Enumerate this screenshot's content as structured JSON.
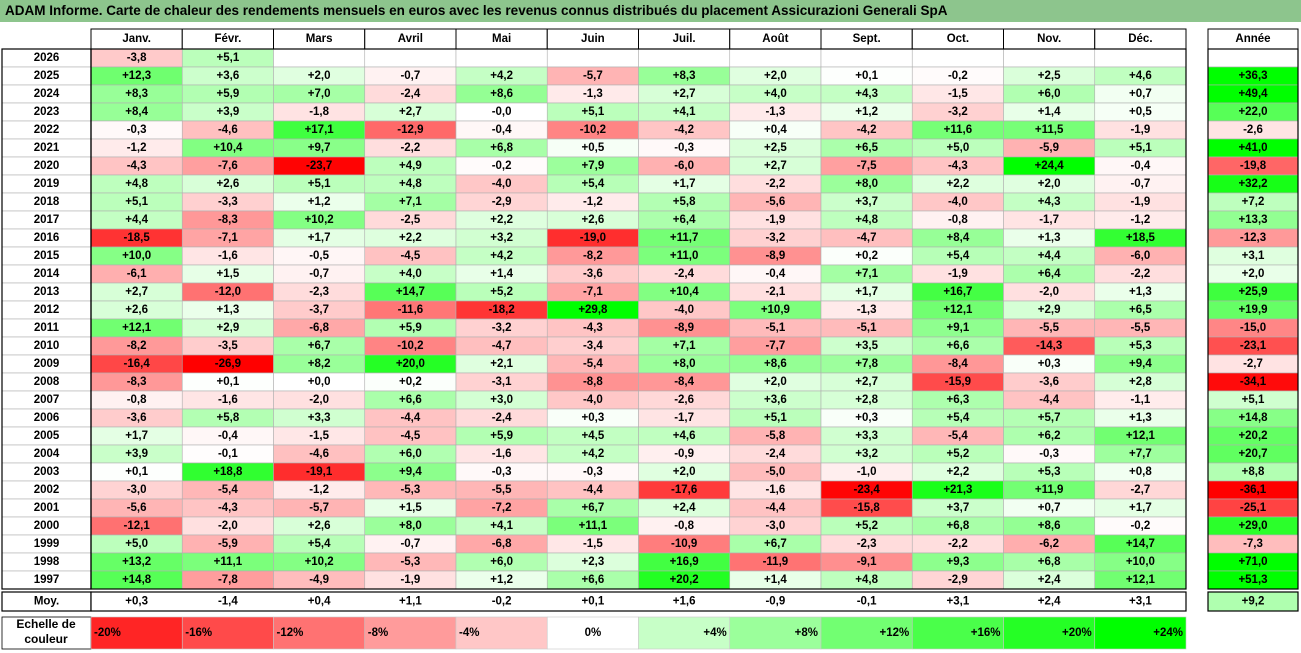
{
  "title": "ADAM Informe. Carte de chaleur des rendements mensuels en euros avec les revenus connus distribués du placement Assicurazioni Generali SpA",
  "chart_data": {
    "type": "heatmap",
    "title": "ADAM Informe. Carte de chaleur des rendements mensuels en euros avec les revenus connus distribués du placement Assicurazioni Generali SpA",
    "months": [
      "Janv.",
      "Févr.",
      "Mars",
      "Avril",
      "Mai",
      "Juin",
      "Juil.",
      "Août",
      "Sept.",
      "Oct.",
      "Nov.",
      "Déc."
    ],
    "year_header": "Année",
    "avg_label": "Moy.",
    "years": [
      "2026",
      "2025",
      "2024",
      "2023",
      "2022",
      "2021",
      "2020",
      "2019",
      "2018",
      "2017",
      "2016",
      "2015",
      "2014",
      "2013",
      "2012",
      "2011",
      "2010",
      "2009",
      "2008",
      "2007",
      "2006",
      "2005",
      "2004",
      "2003",
      "2002",
      "2001",
      "2000",
      "1999",
      "1998",
      "1997"
    ],
    "values": [
      [
        "-3,8",
        "+5,1",
        "",
        "",
        "",
        "",
        "",
        "",
        "",
        "",
        "",
        ""
      ],
      [
        "+12,3",
        "+3,6",
        "+2,0",
        "-0,7",
        "+4,2",
        "-5,7",
        "+8,3",
        "+2,0",
        "+0,1",
        "-0,2",
        "+2,5",
        "+4,6"
      ],
      [
        "+8,3",
        "+5,9",
        "+7,0",
        "-2,4",
        "+8,6",
        "-1,3",
        "+2,7",
        "+4,0",
        "+4,3",
        "-1,5",
        "+6,0",
        "+0,7"
      ],
      [
        "+8,4",
        "+3,9",
        "-1,8",
        "+2,7",
        "-0,0",
        "+5,1",
        "+4,1",
        "-1,3",
        "+1,2",
        "-3,2",
        "+1,4",
        "+0,5"
      ],
      [
        "-0,3",
        "-4,6",
        "+17,1",
        "-12,9",
        "-0,4",
        "-10,2",
        "-4,2",
        "+0,4",
        "-4,2",
        "+11,6",
        "+11,5",
        "-1,9"
      ],
      [
        "-1,2",
        "+10,4",
        "+9,7",
        "-2,2",
        "+6,8",
        "+0,5",
        "-0,3",
        "+2,5",
        "+6,5",
        "+5,0",
        "-5,9",
        "+5,1"
      ],
      [
        "-4,3",
        "-7,6",
        "-23,7",
        "+4,9",
        "-0,2",
        "+7,9",
        "-6,0",
        "+2,7",
        "-7,5",
        "-4,3",
        "+24,4",
        "-0,4"
      ],
      [
        "+4,8",
        "+2,6",
        "+5,1",
        "+4,8",
        "-4,0",
        "+5,4",
        "+1,7",
        "-2,2",
        "+8,0",
        "+2,2",
        "+2,0",
        "-0,7"
      ],
      [
        "+5,1",
        "-3,3",
        "+1,2",
        "+7,1",
        "-2,9",
        "-1,2",
        "+5,8",
        "-5,6",
        "+3,7",
        "-4,0",
        "+4,3",
        "-1,9"
      ],
      [
        "+4,4",
        "-8,3",
        "+10,2",
        "-2,5",
        "+2,2",
        "+2,6",
        "+6,4",
        "-1,9",
        "+4,8",
        "-0,8",
        "-1,7",
        "-1,2"
      ],
      [
        "-18,5",
        "-7,1",
        "+1,7",
        "+2,2",
        "+3,2",
        "-19,0",
        "+11,7",
        "-3,2",
        "-4,7",
        "+8,4",
        "+1,3",
        "+18,5"
      ],
      [
        "+10,0",
        "-1,6",
        "-0,5",
        "-4,5",
        "+4,2",
        "-8,2",
        "+11,0",
        "-8,9",
        "+0,2",
        "+5,4",
        "+4,4",
        "-6,0"
      ],
      [
        "-6,1",
        "+1,5",
        "-0,7",
        "+4,0",
        "+1,4",
        "-3,6",
        "-2,4",
        "-0,4",
        "+7,1",
        "-1,9",
        "+6,4",
        "-2,2"
      ],
      [
        "+2,7",
        "-12,0",
        "-2,3",
        "+14,7",
        "+5,2",
        "-7,1",
        "+10,4",
        "-2,1",
        "+1,7",
        "+16,7",
        "-2,0",
        "+1,3"
      ],
      [
        "+2,6",
        "+1,3",
        "-3,7",
        "-11,6",
        "-18,2",
        "+29,8",
        "-4,0",
        "+10,9",
        "-1,3",
        "+12,1",
        "+2,9",
        "+6,5"
      ],
      [
        "+12,1",
        "+2,9",
        "-6,8",
        "+5,9",
        "-3,2",
        "-4,3",
        "-8,9",
        "-5,1",
        "-5,1",
        "+9,1",
        "-5,5",
        "-5,5"
      ],
      [
        "-8,2",
        "-3,5",
        "+6,7",
        "-10,2",
        "-4,7",
        "-3,4",
        "+7,1",
        "-7,7",
        "+3,5",
        "+6,6",
        "-14,3",
        "+5,3"
      ],
      [
        "-16,4",
        "-26,9",
        "+8,2",
        "+20,0",
        "+2,1",
        "-5,4",
        "+8,0",
        "+8,6",
        "+7,8",
        "-8,4",
        "+0,3",
        "+9,4"
      ],
      [
        "-8,3",
        "+0,1",
        "+0,0",
        "+0,2",
        "-3,1",
        "-8,8",
        "-8,4",
        "+2,0",
        "+2,7",
        "-15,9",
        "-3,6",
        "+2,8"
      ],
      [
        "-0,8",
        "-1,6",
        "-2,0",
        "+6,6",
        "+3,0",
        "-4,0",
        "-2,6",
        "+3,6",
        "+2,8",
        "+6,3",
        "-4,4",
        "-1,1"
      ],
      [
        "-3,6",
        "+5,8",
        "+3,3",
        "-4,4",
        "-2,4",
        "+0,3",
        "-1,7",
        "+5,1",
        "+0,3",
        "+5,4",
        "+5,7",
        "+1,3"
      ],
      [
        "+1,7",
        "-0,4",
        "-1,5",
        "-4,5",
        "+5,9",
        "+4,5",
        "+4,6",
        "-5,8",
        "+3,3",
        "-5,4",
        "+6,2",
        "+12,1"
      ],
      [
        "+3,9",
        "-0,1",
        "-4,6",
        "+6,0",
        "-1,6",
        "+4,2",
        "-0,9",
        "-2,4",
        "+3,2",
        "+5,2",
        "-0,3",
        "+7,7"
      ],
      [
        "+0,1",
        "+18,8",
        "-19,1",
        "+9,4",
        "-0,3",
        "-0,3",
        "+2,0",
        "-5,0",
        "-1,0",
        "+2,2",
        "+5,3",
        "+0,8"
      ],
      [
        "-3,0",
        "-5,4",
        "-1,2",
        "-5,3",
        "-5,5",
        "-4,4",
        "-17,6",
        "-1,6",
        "-23,4",
        "+21,3",
        "+11,9",
        "-2,7"
      ],
      [
        "-5,6",
        "-4,3",
        "-5,7",
        "+1,5",
        "-7,2",
        "+6,7",
        "+2,4",
        "-4,4",
        "-15,8",
        "+3,7",
        "+0,7",
        "+1,7"
      ],
      [
        "-12,1",
        "-2,0",
        "+2,6",
        "+8,0",
        "+4,1",
        "+11,1",
        "-0,8",
        "-3,0",
        "+5,2",
        "+6,8",
        "+8,6",
        "-0,2"
      ],
      [
        "+5,0",
        "-5,9",
        "+5,4",
        "-0,7",
        "-6,8",
        "-1,5",
        "-10,9",
        "+6,7",
        "-2,3",
        "-2,2",
        "-6,2",
        "+14,7"
      ],
      [
        "+13,2",
        "+11,1",
        "+10,2",
        "-5,3",
        "+6,0",
        "+2,3",
        "+16,9",
        "-11,9",
        "-9,1",
        "+9,3",
        "+6,8",
        "+10,0"
      ],
      [
        "+14,8",
        "-7,8",
        "-4,9",
        "-1,9",
        "+1,2",
        "+6,6",
        "+20,2",
        "+1,4",
        "+4,8",
        "-2,9",
        "+2,4",
        "+12,1"
      ]
    ],
    "annual": [
      "",
      "+36,3",
      "+49,4",
      "+22,0",
      "-2,6",
      "+41,0",
      "-19,8",
      "+32,2",
      "+7,2",
      "+13,3",
      "-12,3",
      "+3,1",
      "+2,0",
      "+25,9",
      "+19,9",
      "-15,0",
      "-23,1",
      "-2,7",
      "-34,1",
      "+5,1",
      "+14,8",
      "+20,2",
      "+20,7",
      "+8,8",
      "-36,1",
      "-25,1",
      "+29,0",
      "-7,3",
      "+71,0",
      "+51,3"
    ],
    "averages": [
      "+0,3",
      "-1,4",
      "+0,4",
      "+1,1",
      "-0,2",
      "+0,1",
      "+1,6",
      "-0,9",
      "-0,1",
      "+3,1",
      "+2,4",
      "+3,1"
    ],
    "avg_annual": "+9,2",
    "scale_title": "Echelle de couleur",
    "scale": [
      "-20%",
      "-16%",
      "-12%",
      "-8%",
      "-4%",
      "0%",
      "+4%",
      "+8%",
      "+12%",
      "+16%",
      "+20%",
      "+24%"
    ],
    "colors": {
      "negative": "#ff0000",
      "neutral": "#ffffff",
      "positive": "#00ff00"
    }
  }
}
